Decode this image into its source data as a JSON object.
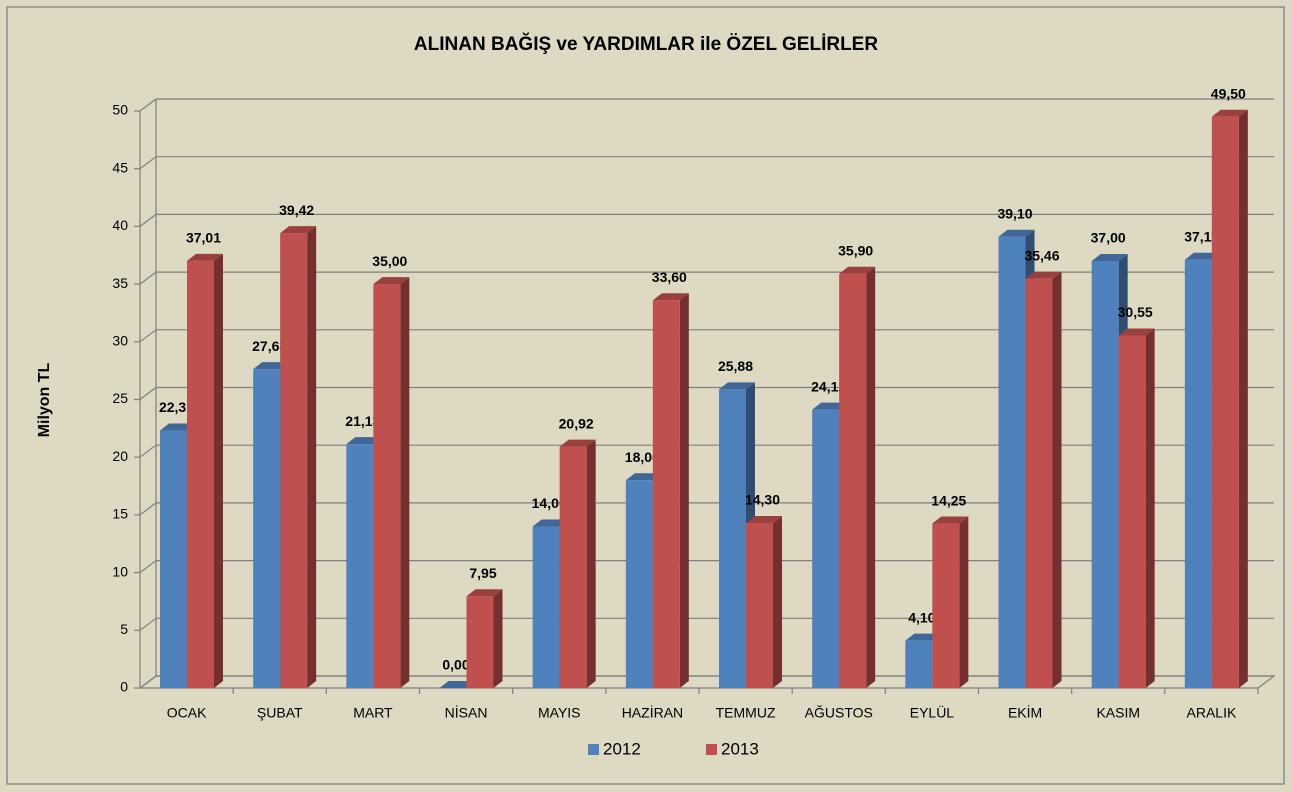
{
  "chart_data": {
    "type": "bar3d",
    "title": "ALINAN  BAĞIŞ ve YARDIMLAR ile ÖZEL GELİRLER",
    "y_label": "Milyon TL",
    "categories": [
      "OCAK",
      "ŞUBAT",
      "MART",
      "NİSAN",
      "MAYIS",
      "HAZİRAN",
      "TEMMUZ",
      "AĞUSTOS",
      "EYLÜL",
      "EKİM",
      "KASIM",
      "ARALIK"
    ],
    "series": [
      {
        "name": "2012",
        "color": "#4f81bd",
        "values": [
          22.31,
          27.63,
          21.13,
          0,
          14,
          18,
          25.88,
          24.12,
          4.1,
          39.1,
          37,
          37.11
        ],
        "value_labels": [
          "22,31",
          "27,63",
          "21,13",
          "0,00",
          "14,00",
          "18,00",
          "25,88",
          "24,12",
          "4,10",
          "39,10",
          "37,00",
          "37,11"
        ]
      },
      {
        "name": "2013",
        "color": "#c0504d",
        "values": [
          37.01,
          39.42,
          35,
          7.95,
          20.92,
          33.6,
          14.3,
          35.9,
          14.25,
          35.46,
          30.55,
          49.5
        ],
        "value_labels": [
          "37,01",
          "39,42",
          "35,00",
          "7,95",
          "20,92",
          "33,60",
          "14,30",
          "35,90",
          "14,25",
          "35,46",
          "30,55",
          "49,50"
        ]
      }
    ],
    "ylim": [
      0,
      50
    ],
    "yticks": [
      0,
      5,
      10,
      15,
      20,
      25,
      30,
      35,
      40,
      45,
      50
    ],
    "grid": true,
    "legend": "bottom"
  }
}
